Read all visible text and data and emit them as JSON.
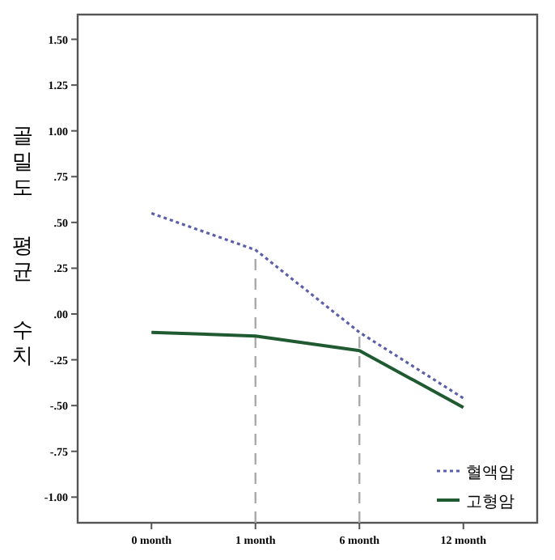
{
  "chart_data": {
    "type": "line",
    "ylabel": "골밀도 평균 수치",
    "categories": [
      "0 month",
      "1 month",
      "6 month",
      "12 month"
    ],
    "series": [
      {
        "name": "혈액암",
        "color": "#5b5fa8",
        "line_style": "dotted",
        "values": [
          0.55,
          0.35,
          -0.1,
          -0.46
        ]
      },
      {
        "name": "고형암",
        "color": "#1f5a30",
        "line_style": "solid",
        "values": [
          -0.1,
          -0.12,
          -0.2,
          -0.51
        ]
      }
    ],
    "ylim": [
      -1.14,
      1.635
    ],
    "yticks": [
      {
        "value": -1,
        "label": "-1.00"
      },
      {
        "value": -0.75,
        "label": "-.75"
      },
      {
        "value": -0.5,
        "label": "-.50"
      },
      {
        "value": -0.25,
        "label": "-.25"
      },
      {
        "value": 0,
        "label": ".00"
      },
      {
        "value": 0.25,
        "label": ".25"
      },
      {
        "value": 0.5,
        "label": ".50"
      },
      {
        "value": 0.75,
        "label": ".75"
      },
      {
        "value": 1,
        "label": "1.00"
      },
      {
        "value": 1.25,
        "label": "1.25"
      },
      {
        "value": 1.5,
        "label": "1.50"
      }
    ],
    "ref_lines": [
      {
        "axis": "x",
        "value": "1 month",
        "color": "#aaaaaa",
        "line_style": "dashed"
      },
      {
        "axis": "x",
        "value": "6 month",
        "color": "#aaaaaa",
        "line_style": "dashed"
      }
    ],
    "legend": "bottom right",
    "grid": false,
    "marker": "none"
  }
}
